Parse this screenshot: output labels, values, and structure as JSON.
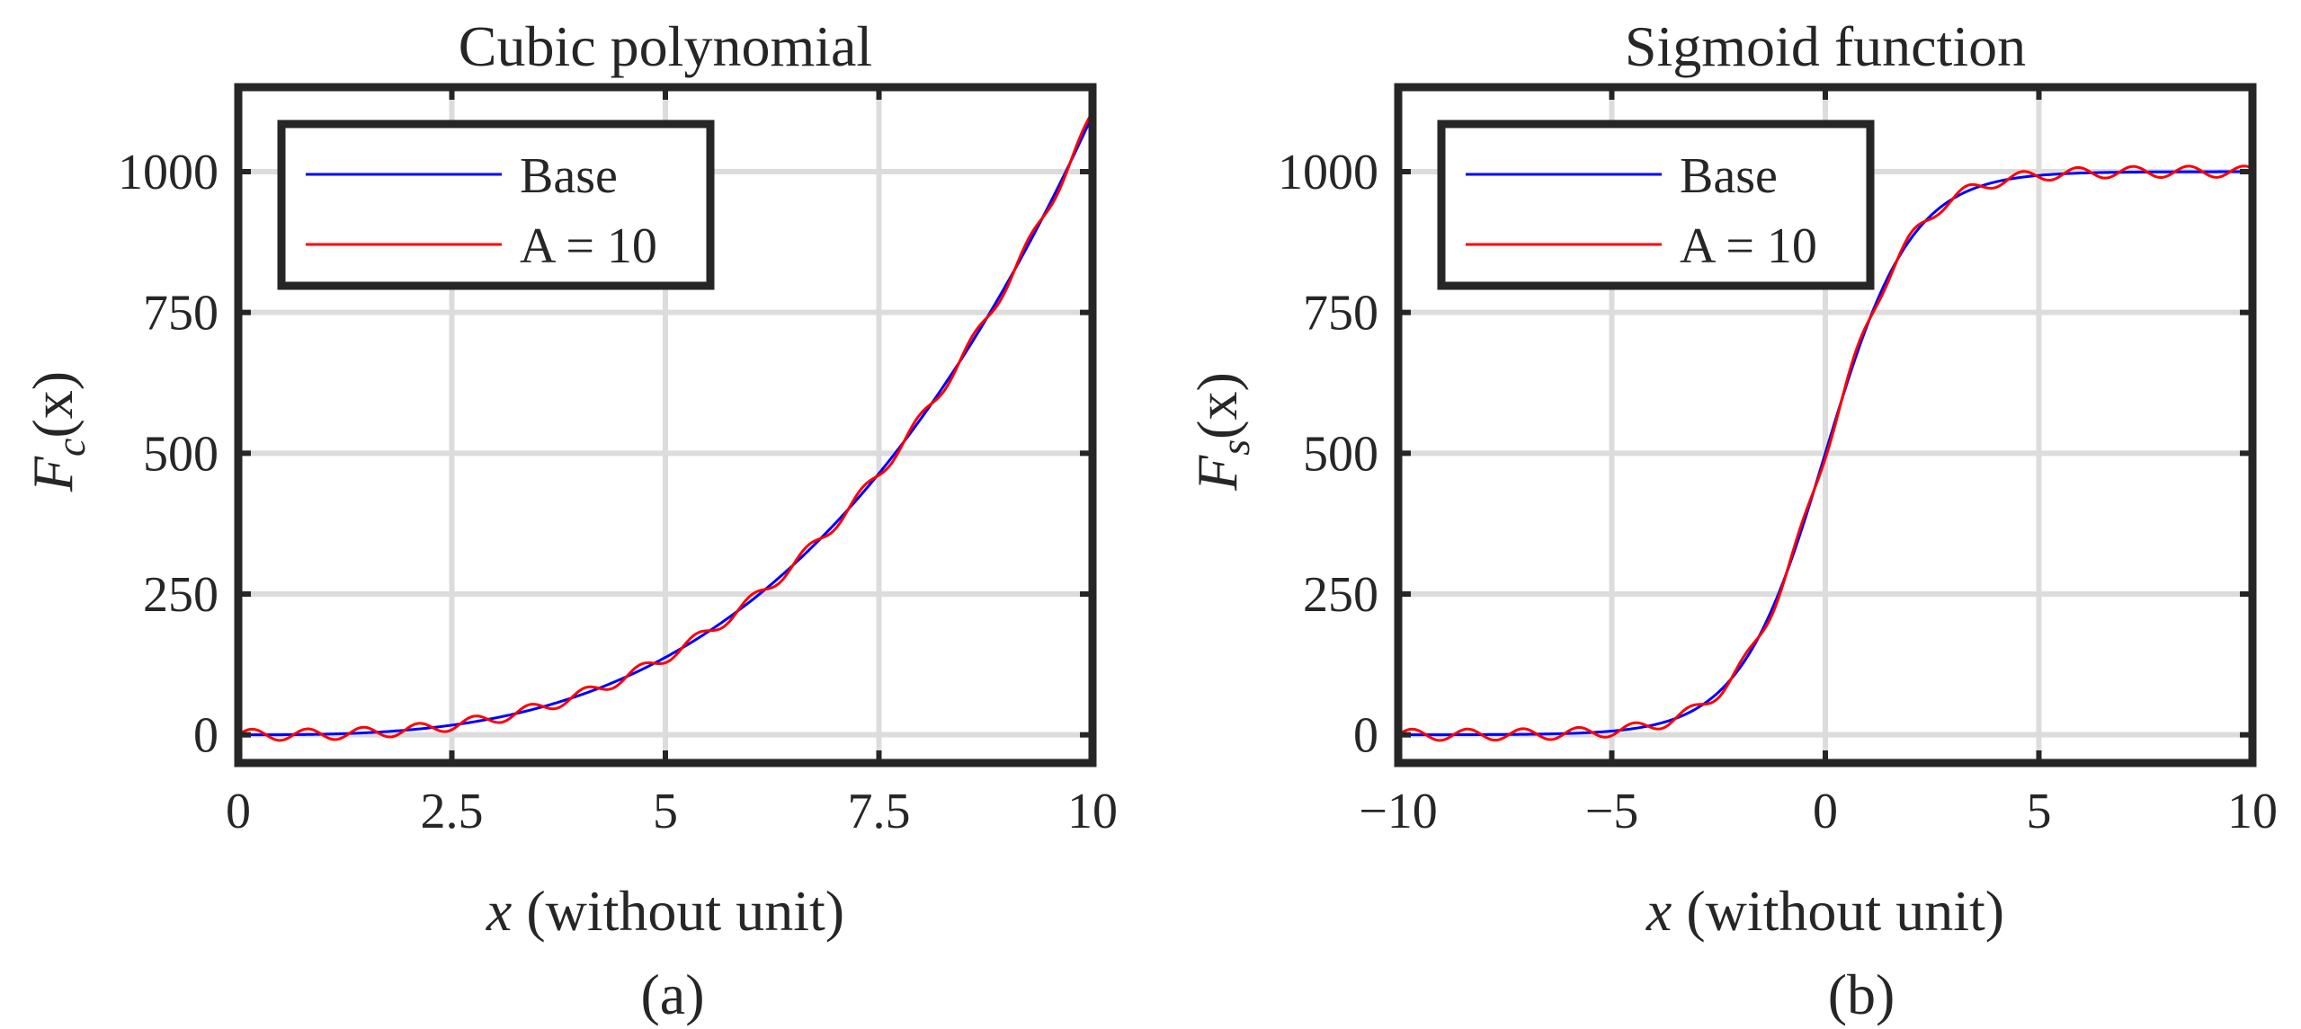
{
  "chart_data": [
    {
      "type": "line",
      "title": "Cubic polynomial",
      "xlabel_var": "x",
      "xlabel_rest": " (without unit)",
      "ylabel_base": "F",
      "ylabel_sub": "c",
      "ylabel_arg": "(x)",
      "panel_label": "(a)",
      "xlim": [
        0,
        10
      ],
      "ylim": [
        -50,
        1150
      ],
      "xticks": [
        0,
        2.5,
        5,
        7.5,
        10
      ],
      "xtick_labels": [
        "0",
        "2.5",
        "5",
        "7.5",
        "10"
      ],
      "yticks": [
        0,
        250,
        500,
        750,
        1000
      ],
      "ytick_labels": [
        "0",
        "250",
        "500",
        "750",
        "1000"
      ],
      "grid": true,
      "legend_position": "top-left",
      "series": [
        {
          "name": "Base",
          "color": "#0000ff",
          "function": "cubic",
          "amplitude": 0
        },
        {
          "name": "A = 10",
          "color": "#ff0000",
          "function": "cubic",
          "amplitude": 10
        }
      ]
    },
    {
      "type": "line",
      "title": "Sigmoid function",
      "xlabel_var": "x",
      "xlabel_rest": " (without unit)",
      "ylabel_base": "F",
      "ylabel_sub": "s",
      "ylabel_arg": "(x)",
      "panel_label": "(b)",
      "xlim": [
        -10,
        10
      ],
      "ylim": [
        -50,
        1150
      ],
      "xticks": [
        -10,
        -5,
        0,
        5,
        10
      ],
      "xtick_labels": [
        "−10",
        "−5",
        "0",
        "5",
        "10"
      ],
      "yticks": [
        0,
        250,
        500,
        750,
        1000
      ],
      "ytick_labels": [
        "0",
        "250",
        "500",
        "750",
        "1000"
      ],
      "grid": true,
      "legend_position": "top-left",
      "series": [
        {
          "name": "Base",
          "color": "#0000ff",
          "function": "sigmoid",
          "amplitude": 0
        },
        {
          "name": "A = 10",
          "color": "#ff0000",
          "function": "sigmoid",
          "amplitude": 10
        }
      ]
    }
  ]
}
